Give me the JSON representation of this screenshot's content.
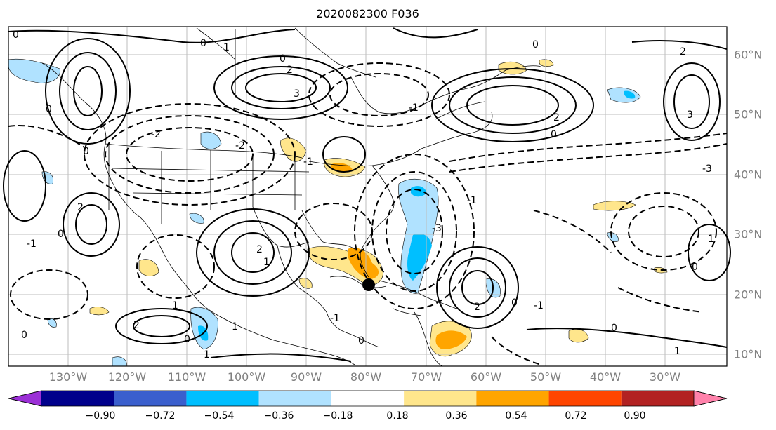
{
  "title": "2020082300 F036",
  "longitude_labels": [
    "130°W",
    "120°W",
    "110°W",
    "100°W",
    "90°W",
    "80°W",
    "70°W",
    "60°W",
    "50°W",
    "40°W",
    "30°W"
  ],
  "latitude_labels": [
    "60°N",
    "50°N",
    "40°N",
    "30°N",
    "20°N",
    "10°N"
  ],
  "colorbar": {
    "ticks": [
      "−0.90",
      "−0.72",
      "−0.54",
      "−0.36",
      "−0.18",
      "0.18",
      "0.36",
      "0.54",
      "0.72",
      "0.90"
    ],
    "colors": [
      "#9b30d6",
      "#00008b",
      "#3a5fcd",
      "#00bfff",
      "#b0e2ff",
      "#ffffff",
      "#ffe68c",
      "#ffa500",
      "#ff4500",
      "#b22222",
      "#ff82ab"
    ]
  },
  "contour_labels": [
    "0",
    "1",
    "2",
    "3",
    "-1",
    "-2",
    "-3"
  ],
  "storm_marker": {
    "lon": -80,
    "lat": 22
  }
}
